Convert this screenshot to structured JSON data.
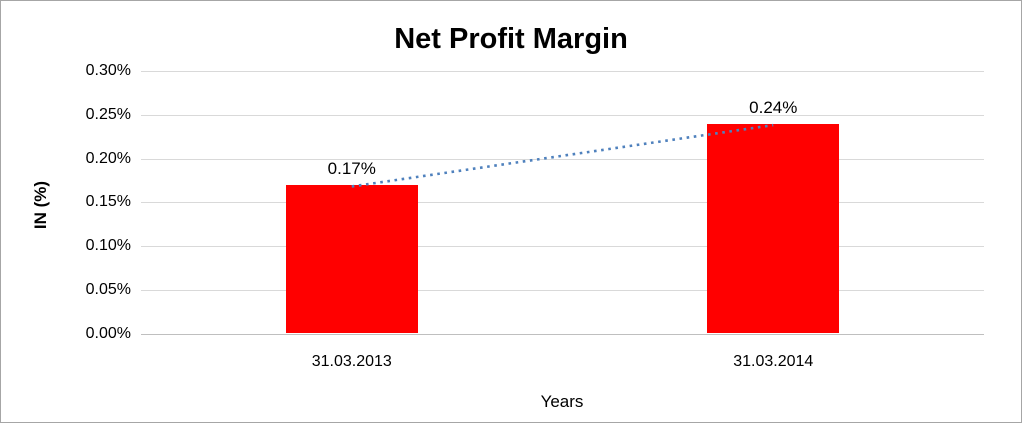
{
  "chart_data": {
    "type": "bar",
    "title": "Net Profit Margin",
    "xlabel": "Years",
    "ylabel": "IN (%)",
    "categories": [
      "31.03.2013",
      "31.03.2014"
    ],
    "series": [
      {
        "name": "Net Profit Margin",
        "values": [
          0.17,
          0.24
        ]
      }
    ],
    "data_labels": [
      "0.17%",
      "0.24%"
    ],
    "ylim": [
      0,
      0.3
    ],
    "ytick_step": 0.05,
    "ytick_labels": [
      "0.00%",
      "0.05%",
      "0.10%",
      "0.15%",
      "0.20%",
      "0.25%",
      "0.30%"
    ],
    "grid": true,
    "legend": false,
    "colors": {
      "bar": "#ff0000",
      "trendline": "#4f81bd",
      "gridline": "#d9d9d9",
      "axis_line": "#bfbfbf",
      "text": "#000000"
    },
    "trendline": {
      "style": "dotted",
      "connects": "bar tops"
    }
  }
}
